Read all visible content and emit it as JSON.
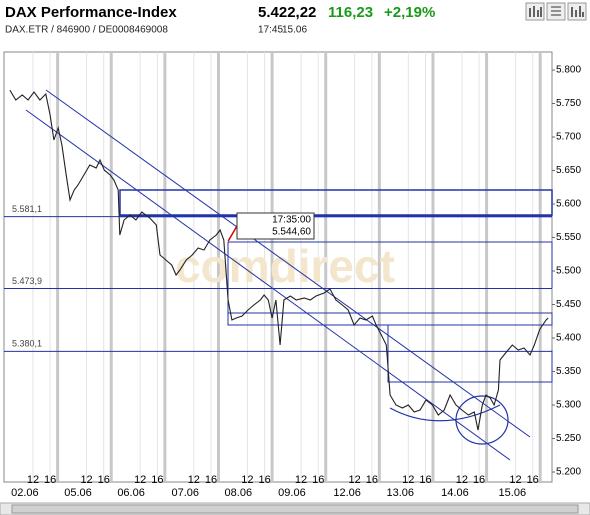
{
  "header": {
    "title": "DAX Performance-Index",
    "price": "5.422,22",
    "change": "116,23",
    "change_pct": "+2,19%",
    "ids": "DAX.ETR / 846900 / DE0008469008",
    "time": "17:45",
    "date": "15.06"
  },
  "chart_data": {
    "type": "line",
    "watermark": "comdirect",
    "series": [
      {
        "color": "#222222",
        "x": [
          0.11,
          0.22,
          0.34,
          0.45,
          0.56,
          0.67,
          0.78,
          0.86,
          0.93,
          1.01,
          1.08,
          1.16,
          1.23,
          1.31,
          1.38,
          1.49,
          1.6,
          1.72,
          1.79,
          1.87,
          1.98,
          2.05,
          2.13,
          2.16,
          2.24,
          2.35,
          2.46,
          2.57,
          2.72,
          2.84,
          2.91,
          3.02,
          3.13,
          3.21,
          3.28,
          3.4,
          3.51,
          3.62,
          3.73,
          3.84,
          3.96,
          4.03,
          4.1,
          4.18,
          4.25,
          4.33,
          4.44,
          4.55,
          4.66,
          4.78,
          4.85,
          4.93,
          5.0,
          5.07,
          5.15,
          5.22,
          5.34,
          5.45,
          5.6,
          5.71,
          5.82,
          5.97,
          6.08,
          6.19,
          6.31,
          6.42,
          6.53,
          6.64,
          6.75,
          6.87,
          6.94,
          7.01,
          7.13,
          7.2,
          7.31,
          7.43,
          7.54,
          7.65,
          7.76,
          7.87,
          7.99,
          8.1,
          8.21,
          8.32,
          8.43,
          8.54,
          8.66,
          8.77,
          8.84,
          8.92,
          8.99,
          9.07,
          9.14,
          9.22,
          9.25,
          9.37,
          9.48,
          9.59,
          9.7,
          9.81,
          9.89,
          9.99,
          10.11,
          10.15
        ],
        "values": [
          5770.1,
          5755.2,
          5762.7,
          5755.2,
          5767.2,
          5755.2,
          5764.2,
          5732.8,
          5695.5,
          5713.4,
          5688.1,
          5643.3,
          5606.0,
          5620.9,
          5628.4,
          5643.3,
          5658.2,
          5653.7,
          5665.7,
          5650.7,
          5643.3,
          5635.8,
          5620.9,
          5553.7,
          5576.1,
          5583.6,
          5576.1,
          5588.1,
          5579.1,
          5568.7,
          5523.9,
          5516.4,
          5508.9,
          5494.0,
          5501.5,
          5516.4,
          5523.9,
          5534.3,
          5531.3,
          5546.3,
          5553.7,
          5561.2,
          5546.3,
          5456.7,
          5426.9,
          5429.9,
          5432.8,
          5441.8,
          5449.3,
          5456.7,
          5464.2,
          5456.7,
          5429.9,
          5456.7,
          5389.6,
          5456.7,
          5462.7,
          5456.7,
          5459.7,
          5456.7,
          5462.7,
          5467.2,
          5473.2,
          5456.7,
          5449.3,
          5441.8,
          5419.4,
          5429.9,
          5426.9,
          5432.8,
          5419.4,
          5408.9,
          5389.6,
          5314.9,
          5300.0,
          5295.5,
          5300.0,
          5289.6,
          5292.5,
          5307.5,
          5300.0,
          5285.1,
          5292.5,
          5314.9,
          5300.0,
          5292.5,
          5285.1,
          5289.6,
          5262.7,
          5300.0,
          5314.9,
          5310.4,
          5300.0,
          5322.4,
          5367.2,
          5379.1,
          5389.6,
          5382.1,
          5385.1,
          5374.6,
          5389.6,
          5412.7,
          5426.9,
          5429.9
        ]
      }
    ],
    "xlim": [
      0,
      10.22
    ],
    "ylim": [
      5185.1,
      5826.9
    ],
    "yticks": [
      {
        "value": 5200,
        "label": "5.200"
      },
      {
        "value": 5250,
        "label": "5.250"
      },
      {
        "value": 5300,
        "label": "5.300"
      },
      {
        "value": 5350,
        "label": "5.350"
      },
      {
        "value": 5400,
        "label": "5.400"
      },
      {
        "value": 5450,
        "label": "5.450"
      },
      {
        "value": 5500,
        "label": "5.500"
      },
      {
        "value": 5550,
        "label": "5.550"
      },
      {
        "value": 5600,
        "label": "5.600"
      },
      {
        "value": 5650,
        "label": "5.650"
      },
      {
        "value": 5700,
        "label": "5.700"
      },
      {
        "value": 5750,
        "label": "5.750"
      },
      {
        "value": 5800,
        "label": "5.800"
      }
    ],
    "xticks": [
      {
        "value": 0.54,
        "label": "12"
      },
      {
        "value": 0.86,
        "label": "16"
      },
      {
        "value": 1.54,
        "label": "12"
      },
      {
        "value": 1.86,
        "label": "16"
      },
      {
        "value": 2.54,
        "label": "12"
      },
      {
        "value": 2.86,
        "label": "16"
      },
      {
        "value": 3.54,
        "label": "12"
      },
      {
        "value": 3.86,
        "label": "16"
      },
      {
        "value": 4.54,
        "label": "12"
      },
      {
        "value": 4.86,
        "label": "16"
      },
      {
        "value": 5.54,
        "label": "12"
      },
      {
        "value": 5.86,
        "label": "16"
      },
      {
        "value": 6.54,
        "label": "12"
      },
      {
        "value": 6.86,
        "label": "16"
      },
      {
        "value": 7.54,
        "label": "12"
      },
      {
        "value": 7.86,
        "label": "16"
      },
      {
        "value": 8.54,
        "label": "12"
      },
      {
        "value": 8.86,
        "label": "16"
      },
      {
        "value": 9.54,
        "label": "12"
      },
      {
        "value": 9.86,
        "label": "16"
      }
    ],
    "date_ticks": [
      {
        "value": 0.39,
        "label": "02.06"
      },
      {
        "value": 1.38,
        "label": "05.06"
      },
      {
        "value": 2.37,
        "label": "06.06"
      },
      {
        "value": 3.38,
        "label": "07.06"
      },
      {
        "value": 4.37,
        "label": "08.06"
      },
      {
        "value": 5.37,
        "label": "09.06"
      },
      {
        "value": 6.4,
        "label": "12.06"
      },
      {
        "value": 7.39,
        "label": "13.06"
      },
      {
        "value": 8.41,
        "label": "14.06"
      },
      {
        "value": 9.48,
        "label": "15.06"
      }
    ],
    "day_lines": [
      1,
      2,
      3,
      4,
      5,
      6,
      7,
      8,
      9,
      10
    ],
    "ref_lines": [
      {
        "value": 5581.1,
        "label": "5.581,1"
      },
      {
        "value": 5473.9,
        "label": "5.473,9"
      },
      {
        "value": 5380.1,
        "label": "5.380,1"
      }
    ],
    "tooltip": {
      "time": "17:35:00",
      "x": 4.18,
      "value": 5544.6,
      "label": "5.544,60"
    }
  }
}
